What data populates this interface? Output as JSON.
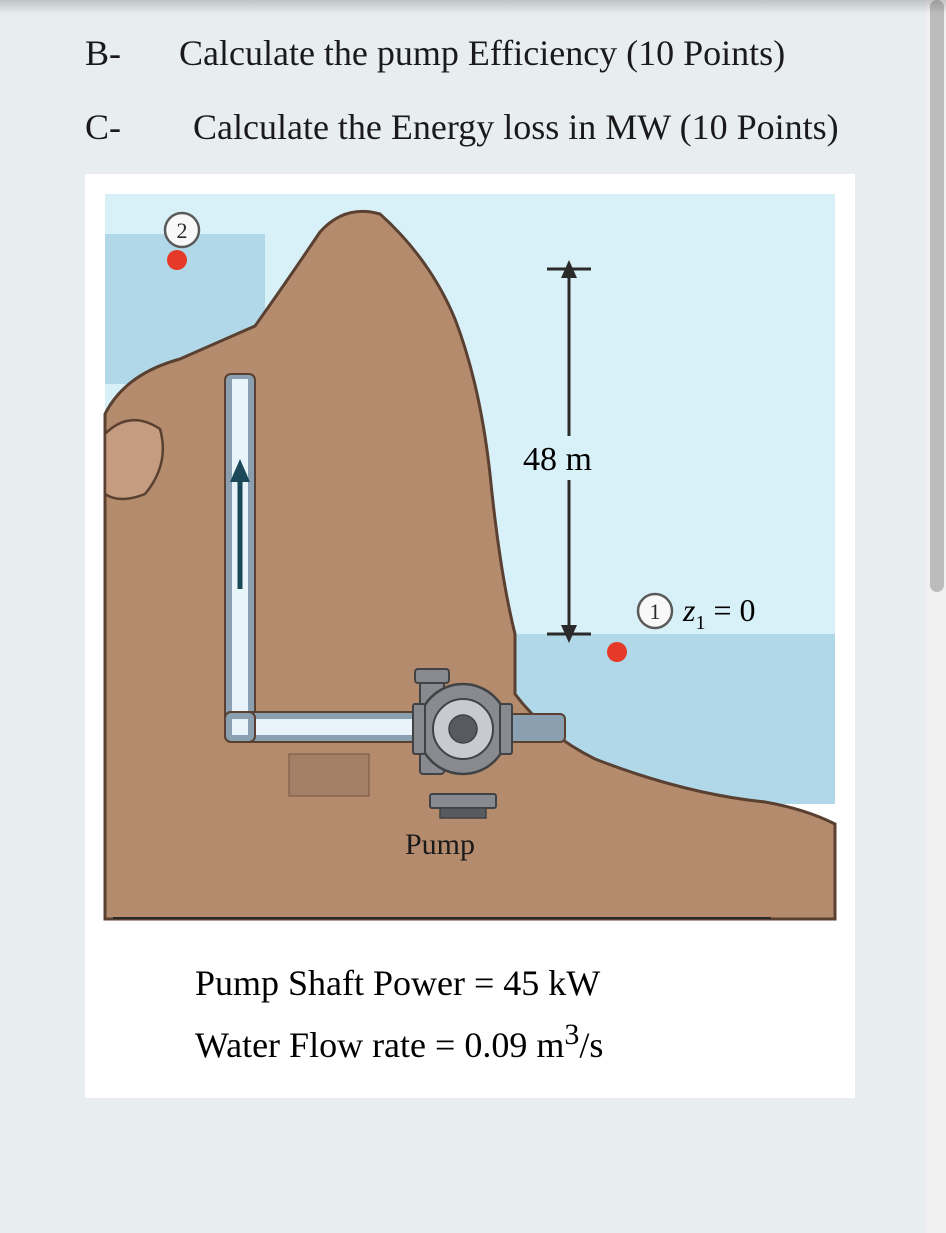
{
  "questions": {
    "b": {
      "letter": "B-",
      "text": "Calculate the pump Efficiency (10 Points)"
    },
    "c": {
      "letter": "C-",
      "text": "Calculate the Energy loss in MW (10 Points)"
    }
  },
  "diagram": {
    "height_value": "48",
    "height_unit": "m",
    "point1_label": "1",
    "point2_label": "2",
    "z1_label": "z",
    "z1_sub": "1",
    "z1_rhs": " = 0",
    "pump_label": "Pump",
    "colors": {
      "sky": "#d8f0f8",
      "water": "#b0d8e8",
      "land_dark": "#b58b6e",
      "land_light": "#c59c80",
      "land_outline": "#5a4030",
      "pump_body": "#888a90",
      "pump_light": "#c8cad0",
      "pump_dark": "#585a60",
      "pipe": "#8aa0b0",
      "pipe_inner": "#e8f4fa",
      "arrow": "#1a4a5a",
      "marker_red": "#e63a28",
      "height_bar": "#2a2a2a",
      "circle_stroke": "#5a5a5a",
      "circle_fill": "#f8f8f8"
    },
    "font_family": "Times New Roman, Times, serif",
    "label_fontsize": 30,
    "z_fontsize": 30,
    "pump_fontsize": 28,
    "point_fontsize": 20
  },
  "given": {
    "line1": "Pump Shaft Power = 45 kW",
    "line2_prefix": "Water Flow rate = 0.09 m",
    "line2_sup": "3",
    "line2_suffix": "/s"
  },
  "scrollbar": {
    "thumb_height_pct": 48,
    "thumb_top_pct": 0,
    "track_color": "#f0f0f0",
    "thumb_color": "#bcbcbc"
  }
}
